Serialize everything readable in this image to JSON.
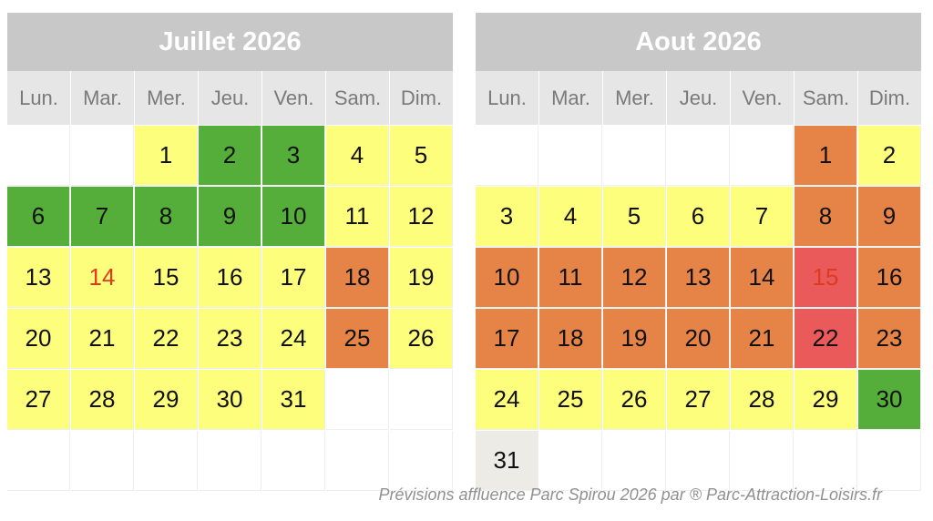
{
  "colors": {
    "empty": "#ffffff",
    "yellow": "#fefe7d",
    "green": "#55ad3a",
    "orange": "#e68447",
    "red": "#ea5a5a",
    "gray": "#ecebe6",
    "holiday_text": "#e03a1e",
    "default_text": "#111111"
  },
  "months": [
    {
      "title": "Juillet 2026",
      "weekdays": [
        "Lun.",
        "Mar.",
        "Mer.",
        "Jeu.",
        "Ven.",
        "Sam.",
        "Dim."
      ],
      "days": [
        {
          "d": "",
          "c": "empty"
        },
        {
          "d": "",
          "c": "empty"
        },
        {
          "d": "1",
          "c": "yellow"
        },
        {
          "d": "2",
          "c": "green"
        },
        {
          "d": "3",
          "c": "green"
        },
        {
          "d": "4",
          "c": "yellow"
        },
        {
          "d": "5",
          "c": "yellow"
        },
        {
          "d": "6",
          "c": "green"
        },
        {
          "d": "7",
          "c": "green"
        },
        {
          "d": "8",
          "c": "green"
        },
        {
          "d": "9",
          "c": "green"
        },
        {
          "d": "10",
          "c": "green"
        },
        {
          "d": "11",
          "c": "yellow"
        },
        {
          "d": "12",
          "c": "yellow"
        },
        {
          "d": "13",
          "c": "yellow"
        },
        {
          "d": "14",
          "c": "yellow",
          "holiday": true
        },
        {
          "d": "15",
          "c": "yellow"
        },
        {
          "d": "16",
          "c": "yellow"
        },
        {
          "d": "17",
          "c": "yellow"
        },
        {
          "d": "18",
          "c": "orange"
        },
        {
          "d": "19",
          "c": "yellow"
        },
        {
          "d": "20",
          "c": "yellow"
        },
        {
          "d": "21",
          "c": "yellow"
        },
        {
          "d": "22",
          "c": "yellow"
        },
        {
          "d": "23",
          "c": "yellow"
        },
        {
          "d": "24",
          "c": "yellow"
        },
        {
          "d": "25",
          "c": "orange"
        },
        {
          "d": "26",
          "c": "yellow"
        },
        {
          "d": "27",
          "c": "yellow"
        },
        {
          "d": "28",
          "c": "yellow"
        },
        {
          "d": "29",
          "c": "yellow"
        },
        {
          "d": "30",
          "c": "yellow"
        },
        {
          "d": "31",
          "c": "yellow"
        },
        {
          "d": "",
          "c": "empty"
        },
        {
          "d": "",
          "c": "empty"
        },
        {
          "d": "",
          "c": "empty"
        },
        {
          "d": "",
          "c": "empty"
        },
        {
          "d": "",
          "c": "empty"
        },
        {
          "d": "",
          "c": "empty"
        },
        {
          "d": "",
          "c": "empty"
        },
        {
          "d": "",
          "c": "empty"
        },
        {
          "d": "",
          "c": "empty"
        }
      ]
    },
    {
      "title": "Aout 2026",
      "weekdays": [
        "Lun.",
        "Mar.",
        "Mer.",
        "Jeu.",
        "Ven.",
        "Sam.",
        "Dim."
      ],
      "days": [
        {
          "d": "",
          "c": "empty"
        },
        {
          "d": "",
          "c": "empty"
        },
        {
          "d": "",
          "c": "empty"
        },
        {
          "d": "",
          "c": "empty"
        },
        {
          "d": "",
          "c": "empty"
        },
        {
          "d": "1",
          "c": "orange"
        },
        {
          "d": "2",
          "c": "yellow"
        },
        {
          "d": "3",
          "c": "yellow"
        },
        {
          "d": "4",
          "c": "yellow"
        },
        {
          "d": "5",
          "c": "yellow"
        },
        {
          "d": "6",
          "c": "yellow"
        },
        {
          "d": "7",
          "c": "yellow"
        },
        {
          "d": "8",
          "c": "orange"
        },
        {
          "d": "9",
          "c": "orange"
        },
        {
          "d": "10",
          "c": "orange"
        },
        {
          "d": "11",
          "c": "orange"
        },
        {
          "d": "12",
          "c": "orange"
        },
        {
          "d": "13",
          "c": "orange"
        },
        {
          "d": "14",
          "c": "orange"
        },
        {
          "d": "15",
          "c": "red",
          "holiday": true
        },
        {
          "d": "16",
          "c": "orange"
        },
        {
          "d": "17",
          "c": "orange"
        },
        {
          "d": "18",
          "c": "orange"
        },
        {
          "d": "19",
          "c": "orange"
        },
        {
          "d": "20",
          "c": "orange"
        },
        {
          "d": "21",
          "c": "orange"
        },
        {
          "d": "22",
          "c": "red"
        },
        {
          "d": "23",
          "c": "orange"
        },
        {
          "d": "24",
          "c": "yellow"
        },
        {
          "d": "25",
          "c": "yellow"
        },
        {
          "d": "26",
          "c": "yellow"
        },
        {
          "d": "27",
          "c": "yellow"
        },
        {
          "d": "28",
          "c": "yellow"
        },
        {
          "d": "29",
          "c": "yellow"
        },
        {
          "d": "30",
          "c": "green"
        },
        {
          "d": "31",
          "c": "gray"
        },
        {
          "d": "",
          "c": "empty"
        },
        {
          "d": "",
          "c": "empty"
        },
        {
          "d": "",
          "c": "empty"
        },
        {
          "d": "",
          "c": "empty"
        },
        {
          "d": "",
          "c": "empty"
        },
        {
          "d": "",
          "c": "empty"
        }
      ]
    }
  ],
  "footer": "Prévisions affluence Parc Spirou 2026 par ® Parc-Attraction-Loisirs.fr"
}
